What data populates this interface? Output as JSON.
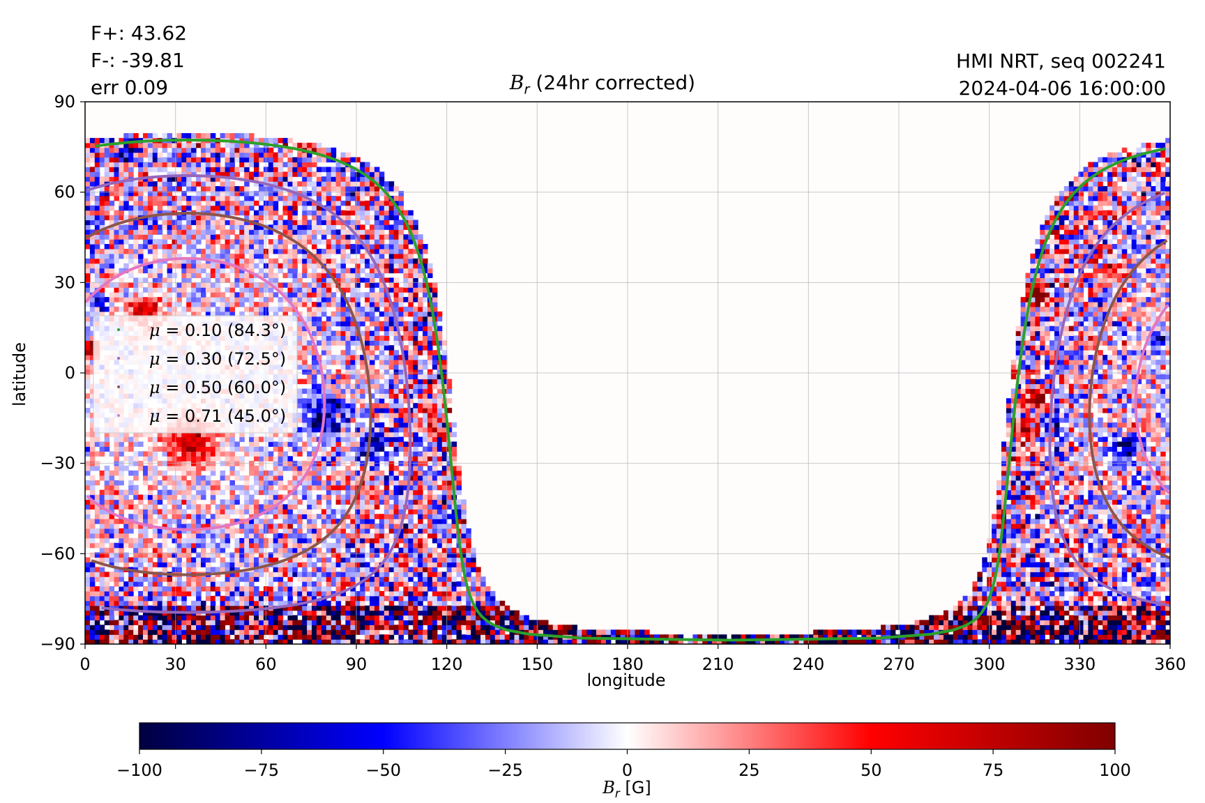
{
  "info_left": [
    "F+: 43.62",
    "F-: -39.81",
    "err 0.09"
  ],
  "info_right": [
    "HMI NRT, seq 002241",
    "2024-04-06 16:00:00"
  ],
  "chart_data": {
    "type": "heatmap",
    "title": "Br (24hr corrected)",
    "xlabel": "longitude",
    "ylabel": "latitude",
    "xlim": [
      0,
      360
    ],
    "ylim": [
      -90,
      90
    ],
    "xticks": [
      0,
      30,
      60,
      90,
      120,
      150,
      180,
      210,
      240,
      270,
      300,
      330,
      360
    ],
    "yticks": [
      90,
      60,
      30,
      0,
      -30,
      -60,
      -90
    ],
    "ytick_labels": [
      "90",
      "60",
      "30",
      "0",
      "−30",
      "−60",
      "−90"
    ],
    "grid": true,
    "colorbar": {
      "label": "Br [G]",
      "range": [
        -100,
        100
      ],
      "ticks": [
        -100,
        -75,
        -50,
        -25,
        0,
        25,
        50,
        75,
        100
      ],
      "tick_labels": [
        "−100",
        "−75",
        "−50",
        "−25",
        "0",
        "25",
        "50",
        "75",
        "100"
      ],
      "colors": [
        "#000040",
        "#0000ff",
        "#ffffff",
        "#ff0000",
        "#800000"
      ]
    },
    "observed_region": {
      "west_edge_lon": 302,
      "east_edge_lon": 125,
      "center_lon": 34,
      "center_lat": -7
    },
    "legend": {
      "position": "center-left",
      "entries": [
        {
          "mu": "0.10",
          "angle": "84.3°",
          "angle_deg": 84.3,
          "color": "#2ca02c"
        },
        {
          "mu": "0.30",
          "angle": "72.5°",
          "angle_deg": 72.5,
          "color": "#9467bd"
        },
        {
          "mu": "0.50",
          "angle": "60.0°",
          "angle_deg": 60.0,
          "color": "#8c564b"
        },
        {
          "mu": "0.71",
          "angle": "45.0°",
          "angle_deg": 45.0,
          "color": "#e377c2"
        }
      ]
    }
  }
}
